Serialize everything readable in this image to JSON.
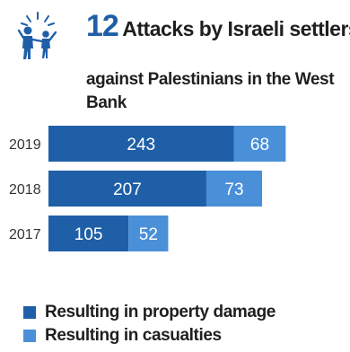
{
  "header": {
    "number": "12",
    "title": "Attacks by Israeli settlers",
    "subtitle": "against Palestinians in the West Bank"
  },
  "colors": {
    "property_damage": "#1f5fa8",
    "casualties": "#4a90d9",
    "accent": "#1f5fa8"
  },
  "icon": {
    "name": "family-icon"
  },
  "legend": {
    "items": [
      {
        "label": "Resulting in property damage",
        "color": "#1f5fa8"
      },
      {
        "label": "Resulting in casualties",
        "color": "#4a90d9"
      }
    ]
  },
  "chart_data": {
    "type": "bar",
    "orientation": "horizontal",
    "stacked": true,
    "categories": [
      "2019",
      "2018",
      "2017"
    ],
    "series": [
      {
        "name": "Resulting in property damage",
        "values": [
          243,
          207,
          105
        ]
      },
      {
        "name": "Resulting in casualties",
        "values": [
          68,
          73,
          52
        ]
      }
    ],
    "title": "Attacks by Israeli settlers",
    "subtitle": "against Palestinians in the West Bank",
    "xlabel": "",
    "ylabel": "",
    "grid": false,
    "legend_position": "bottom-left"
  }
}
